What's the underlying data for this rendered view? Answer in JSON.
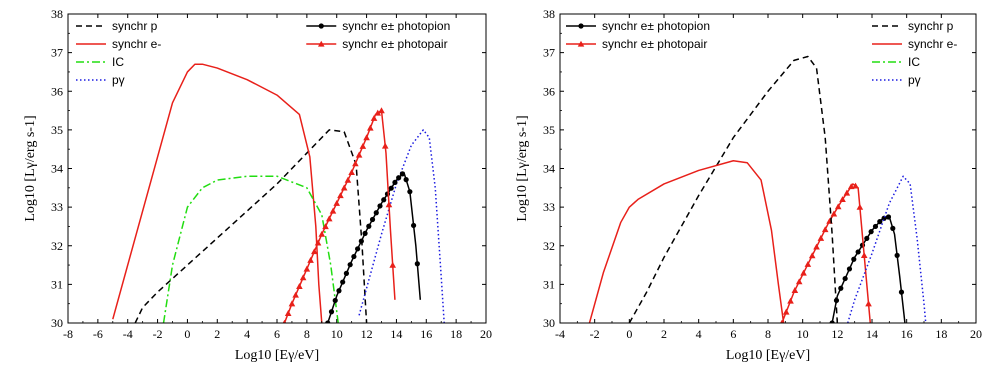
{
  "chart_data": [
    {
      "type": "line",
      "xlabel": "Log10 [Eγ/eV]",
      "ylabel": "Log10 [Lγ/erg s-1]",
      "xlim": [
        -8,
        20
      ],
      "ylim": [
        30,
        38
      ],
      "xticks": [
        -8,
        -6,
        -4,
        -2,
        0,
        2,
        4,
        6,
        8,
        10,
        12,
        14,
        16,
        18,
        20
      ],
      "xtick_labels": [
        "-8",
        "-6",
        "-4",
        "-2",
        "0",
        "2",
        "4",
        "6",
        "8",
        "10",
        "12",
        "14",
        "16",
        "18",
        "20"
      ],
      "yticks": [
        30,
        31,
        32,
        33,
        34,
        35,
        36,
        37,
        38
      ],
      "ytick_labels": [
        "30",
        "31",
        "32",
        "33",
        "34",
        "35",
        "36",
        "37",
        "38"
      ],
      "grid": false,
      "legend_placement": "top-left and top-right",
      "series": [
        {
          "name": "synchr p",
          "color": "#000000",
          "style": "dashed",
          "marker": "none",
          "legend_col": "left",
          "legend_row": 0,
          "x": [
            -3.5,
            -3,
            -2,
            0,
            2,
            4,
            6,
            8,
            9.5,
            10.5,
            11.3,
            11.7,
            12
          ],
          "y": [
            30,
            30.4,
            30.8,
            31.5,
            32.2,
            32.9,
            33.6,
            34.4,
            35.0,
            34.95,
            34.1,
            32.0,
            30
          ]
        },
        {
          "name": "synchr e-",
          "color": "#e8201a",
          "style": "solid",
          "marker": "none",
          "legend_col": "left",
          "legend_row": 1,
          "x": [
            -5,
            -4,
            -2,
            -1,
            0,
            0.5,
            1,
            2,
            4,
            6,
            7.5,
            8.2,
            8.6,
            8.8,
            9
          ],
          "y": [
            30.1,
            31.5,
            34.3,
            35.7,
            36.5,
            36.7,
            36.7,
            36.6,
            36.3,
            35.9,
            35.4,
            34.3,
            32.5,
            31,
            30
          ]
        },
        {
          "name": "IC",
          "color": "#22dd11",
          "style": "dashdot",
          "marker": "none",
          "legend_col": "left",
          "legend_row": 2,
          "x": [
            -1.6,
            -1,
            0,
            1,
            2,
            4,
            6,
            8,
            9,
            9.6,
            10.1
          ],
          "y": [
            30,
            31.5,
            33.0,
            33.5,
            33.7,
            33.8,
            33.8,
            33.5,
            32.8,
            31.5,
            30
          ]
        },
        {
          "name": "pγ",
          "color": "#1a1ae0",
          "style": "dotted",
          "marker": "none",
          "legend_col": "left",
          "legend_row": 3,
          "x": [
            11.5,
            12,
            13,
            14,
            15,
            15.8,
            16.2,
            16.6,
            17,
            17.2
          ],
          "y": [
            30.2,
            30.9,
            32.3,
            33.6,
            34.6,
            35.0,
            34.8,
            33.5,
            31.2,
            30
          ]
        },
        {
          "name": "synchr e± photopion",
          "color": "#000000",
          "style": "solid",
          "marker": "circle",
          "legend_col": "right",
          "legend_row": 0,
          "x": [
            9.4,
            10,
            11,
            12,
            13,
            14,
            14.5,
            14.9,
            15.3,
            15.6
          ],
          "y": [
            30,
            30.7,
            31.6,
            32.4,
            33.1,
            33.7,
            33.9,
            33.4,
            32.0,
            30.6
          ]
        },
        {
          "name": "synchr e± photopair",
          "color": "#e8201a",
          "style": "solid",
          "marker": "triangle",
          "legend_col": "right",
          "legend_row": 1,
          "x": [
            6.5,
            7,
            8,
            9,
            10,
            11,
            12,
            12.6,
            13.0,
            13.3,
            13.6,
            13.9
          ],
          "y": [
            30,
            30.5,
            31.4,
            32.3,
            33.1,
            33.9,
            34.8,
            35.4,
            35.5,
            34.4,
            32.4,
            30.6
          ]
        }
      ]
    },
    {
      "type": "line",
      "xlabel": "Log10 [Eγ/eV]",
      "ylabel": "Log10 [Lγ/erg s-1]",
      "xlim": [
        -4,
        20
      ],
      "ylim": [
        30,
        38
      ],
      "xticks": [
        -4,
        -2,
        0,
        2,
        4,
        6,
        8,
        10,
        12,
        14,
        16,
        18,
        20
      ],
      "xtick_labels": [
        "-4",
        "-2",
        "0",
        "2",
        "4",
        "6",
        "8",
        "10",
        "12",
        "14",
        "16",
        "18",
        "20"
      ],
      "yticks": [
        30,
        31,
        32,
        33,
        34,
        35,
        36,
        37,
        38
      ],
      "ytick_labels": [
        "30",
        "31",
        "32",
        "33",
        "34",
        "35",
        "36",
        "37",
        "38"
      ],
      "grid": false,
      "legend_placement": "top-left and top-right",
      "series": [
        {
          "name": "synchr e± photopion",
          "color": "#000000",
          "style": "solid",
          "marker": "circle",
          "legend_col": "left",
          "legend_row": 0,
          "x": [
            11.7,
            12,
            13,
            14,
            14.6,
            15.0,
            15.3,
            15.6,
            15.9
          ],
          "y": [
            30,
            30.7,
            31.7,
            32.4,
            32.7,
            32.75,
            32.3,
            31.2,
            30
          ]
        },
        {
          "name": "synchr e± photopair",
          "color": "#e8201a",
          "style": "solid",
          "marker": "triangle",
          "legend_col": "left",
          "legend_row": 1,
          "x": [
            8.8,
            9.5,
            10.5,
            11.5,
            12.3,
            12.9,
            13.2,
            13.5,
            13.9
          ],
          "y": [
            30,
            30.8,
            31.7,
            32.6,
            33.2,
            33.6,
            33.5,
            32.0,
            30
          ]
        },
        {
          "name": "synchr p",
          "color": "#000000",
          "style": "dashed",
          "marker": "none",
          "legend_col": "right",
          "legend_row": 0,
          "x": [
            0,
            1,
            2,
            4,
            6,
            8,
            9.5,
            10.3,
            10.8,
            11.3,
            11.7,
            12
          ],
          "y": [
            30,
            30.8,
            31.7,
            33.3,
            34.8,
            36.0,
            36.8,
            36.9,
            36.6,
            34.8,
            32.3,
            30
          ]
        },
        {
          "name": "synchr e-",
          "color": "#e8201a",
          "style": "solid",
          "marker": "none",
          "legend_col": "right",
          "legend_row": 1,
          "x": [
            -2.3,
            -1.5,
            -0.5,
            0,
            0.5,
            2,
            4,
            6,
            6.8,
            7.6,
            8.2,
            8.6,
            8.9
          ],
          "y": [
            30,
            31.3,
            32.6,
            33.0,
            33.2,
            33.6,
            33.95,
            34.2,
            34.15,
            33.7,
            32.4,
            31.0,
            30
          ]
        },
        {
          "name": "IC",
          "color": "#22dd11",
          "style": "dashdot",
          "marker": "none",
          "legend_col": "right",
          "legend_row": 2,
          "x": [],
          "y": []
        },
        {
          "name": "pγ",
          "color": "#1a1ae0",
          "style": "dotted",
          "marker": "none",
          "legend_col": "right",
          "legend_row": 3,
          "x": [
            12.6,
            13,
            14,
            15,
            15.8,
            16.2,
            16.6,
            17,
            17.1
          ],
          "y": [
            30,
            30.6,
            31.8,
            33.1,
            33.8,
            33.6,
            32.2,
            30.5,
            30
          ]
        }
      ]
    }
  ]
}
